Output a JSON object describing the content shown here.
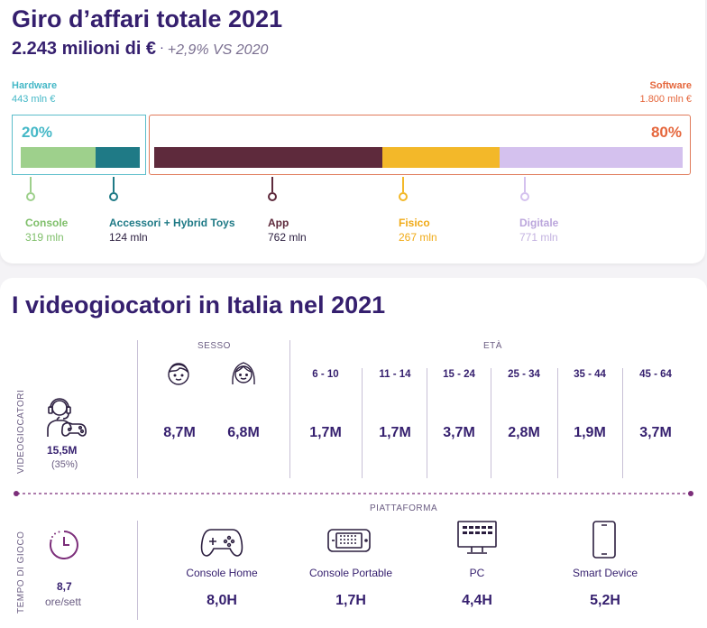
{
  "revenue": {
    "title": "Giro d’affari totale 2021",
    "total": "2.243 milioni di €",
    "separator": "·",
    "comparison": "+2,9% VS 2020",
    "hardware": {
      "label": "Hardware",
      "value": "443 mln €",
      "percent": "20%",
      "color": "#45b8c7"
    },
    "software": {
      "label": "Software",
      "value": "1.800 mln €",
      "percent": "80%",
      "color": "#e5673d"
    },
    "segments": [
      {
        "label": "Console",
        "value": "319 mln",
        "color": "#9ed08c",
        "amount": 319
      },
      {
        "label": "Accessori + Hybrid Toys",
        "value": "124 mln",
        "color": "#1f7a86",
        "amount": 124
      },
      {
        "label": "App",
        "value": "762 mln",
        "color": "#5e2a3c",
        "amount": 762
      },
      {
        "label": "Fisico",
        "value": "267 mln",
        "color": "#f3b829",
        "amount": 267
      },
      {
        "label": "Digitale",
        "value": "771 mln",
        "color": "#d4c1ee",
        "amount": 771
      }
    ]
  },
  "players": {
    "title": "I videogiocatori in Italia nel 2021",
    "side_label": "VIDEOGIOCATORI",
    "total": "15,5M",
    "total_share": "(35%)",
    "sex": {
      "label": "SESSO",
      "male": "8,7M",
      "female": "6,8M"
    },
    "age": {
      "label": "ETÀ",
      "groups": [
        {
          "range": "6 - 10",
          "value": "1,7M"
        },
        {
          "range": "11 - 14",
          "value": "1,7M"
        },
        {
          "range": "15 - 24",
          "value": "3,7M"
        },
        {
          "range": "25 - 34",
          "value": "2,8M"
        },
        {
          "range": "35 - 44",
          "value": "1,9M"
        },
        {
          "range": "45 - 64",
          "value": "3,7M"
        }
      ]
    }
  },
  "playtime": {
    "side_label": "TEMPO DI GIOCO",
    "total": "8,7",
    "unit": "ore/sett",
    "platform_label": "PIATTAFORMA",
    "platforms": [
      {
        "name": "Console Home",
        "value": "8,0H",
        "icon": "gamepad-icon"
      },
      {
        "name": "Console Portable",
        "value": "1,7H",
        "icon": "handheld-console-icon"
      },
      {
        "name": "PC",
        "value": "4,4H",
        "icon": "pc-monitor-icon"
      },
      {
        "name": "Smart Device",
        "value": "5,2H",
        "icon": "smartphone-icon"
      }
    ]
  },
  "colors": {
    "heading": "#351f6e",
    "accent": "#7c2e7a"
  }
}
